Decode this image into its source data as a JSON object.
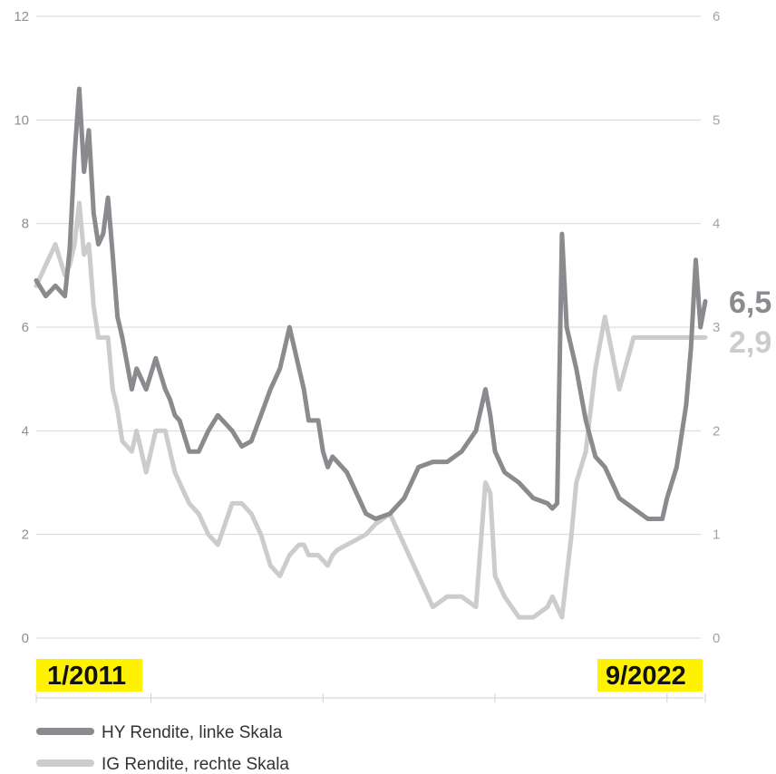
{
  "chart_data": {
    "type": "line",
    "title": "",
    "xlabel": "",
    "y_left": {
      "ylim": [
        0,
        12
      ],
      "ticks": [
        "0",
        "2",
        "4",
        "6",
        "8",
        "10",
        "12"
      ]
    },
    "y_right": {
      "ylim": [
        0,
        6
      ],
      "ticks": [
        "0",
        "1",
        "2",
        "3",
        "4",
        "5",
        "6"
      ]
    },
    "grid": true,
    "x_range": [
      "2011-01",
      "2022-09"
    ],
    "start_date_label": "1/2011",
    "end_date_label": "9/2022",
    "series": [
      {
        "name": "HY Rendite, linke Skala",
        "axis": "left",
        "color": "#8a8a8f",
        "end_label": "6,5",
        "x": [
          "2011-01",
          "2011-03",
          "2011-05",
          "2011-07",
          "2011-08",
          "2011-09",
          "2011-10",
          "2011-11",
          "2011-12",
          "2012-01",
          "2012-02",
          "2012-03",
          "2012-04",
          "2012-05",
          "2012-06",
          "2012-07",
          "2012-09",
          "2012-10",
          "2012-12",
          "2013-02",
          "2013-04",
          "2013-05",
          "2013-06",
          "2013-07",
          "2013-09",
          "2013-11",
          "2014-01",
          "2014-03",
          "2014-06",
          "2014-08",
          "2014-10",
          "2014-12",
          "2015-02",
          "2015-04",
          "2015-06",
          "2015-08",
          "2015-09",
          "2015-10",
          "2015-12",
          "2016-01",
          "2016-02",
          "2016-03",
          "2016-04",
          "2016-06",
          "2016-08",
          "2016-10",
          "2016-12",
          "2017-03",
          "2017-06",
          "2017-09",
          "2017-12",
          "2018-03",
          "2018-06",
          "2018-09",
          "2018-11",
          "2018-12",
          "2019-01",
          "2019-03",
          "2019-06",
          "2019-09",
          "2019-12",
          "2020-01",
          "2020-02",
          "2020-03",
          "2020-04",
          "2020-05",
          "2020-06",
          "2020-08",
          "2020-10",
          "2020-12",
          "2021-03",
          "2021-06",
          "2021-09",
          "2021-12",
          "2022-01",
          "2022-03",
          "2022-05",
          "2022-06",
          "2022-07",
          "2022-08",
          "2022-09"
        ],
        "values": [
          6.9,
          6.6,
          6.8,
          6.6,
          7.5,
          9.3,
          10.6,
          9.0,
          9.8,
          8.2,
          7.6,
          7.8,
          8.5,
          7.4,
          6.2,
          5.8,
          4.8,
          5.2,
          4.8,
          5.4,
          4.8,
          4.6,
          4.3,
          4.2,
          3.6,
          3.6,
          4.0,
          4.3,
          4.0,
          3.7,
          3.8,
          4.3,
          4.8,
          5.2,
          6.0,
          5.2,
          4.8,
          4.2,
          4.2,
          3.6,
          3.3,
          3.5,
          3.4,
          3.2,
          2.8,
          2.4,
          2.3,
          2.4,
          2.7,
          3.3,
          3.4,
          3.4,
          3.6,
          4.0,
          4.8,
          4.3,
          3.6,
          3.2,
          3.0,
          2.7,
          2.6,
          2.5,
          2.6,
          7.8,
          6.0,
          5.6,
          5.2,
          4.2,
          3.5,
          3.3,
          2.7,
          2.5,
          2.3,
          2.3,
          2.7,
          3.3,
          4.5,
          5.6,
          7.3,
          6.0,
          6.5
        ]
      },
      {
        "name": "IG Rendite, rechte Skala",
        "axis": "right",
        "color": "#cccccc",
        "end_label": "2,9",
        "x": [
          "2011-01",
          "2011-03",
          "2011-05",
          "2011-07",
          "2011-08",
          "2011-09",
          "2011-10",
          "2011-11",
          "2011-12",
          "2012-01",
          "2012-02",
          "2012-03",
          "2012-04",
          "2012-05",
          "2012-06",
          "2012-07",
          "2012-09",
          "2012-10",
          "2012-12",
          "2013-02",
          "2013-04",
          "2013-05",
          "2013-06",
          "2013-07",
          "2013-09",
          "2013-11",
          "2014-01",
          "2014-03",
          "2014-06",
          "2014-08",
          "2014-10",
          "2014-12",
          "2015-02",
          "2015-04",
          "2015-06",
          "2015-08",
          "2015-09",
          "2015-10",
          "2015-12",
          "2016-01",
          "2016-02",
          "2016-03",
          "2016-04",
          "2016-06",
          "2016-08",
          "2016-10",
          "2016-12",
          "2017-03",
          "2017-06",
          "2017-09",
          "2017-12",
          "2018-03",
          "2018-06",
          "2018-09",
          "2018-11",
          "2018-12",
          "2019-01",
          "2019-03",
          "2019-06",
          "2019-09",
          "2019-12",
          "2020-01",
          "2020-02",
          "2020-03",
          "2020-04",
          "2020-05",
          "2020-06",
          "2020-08",
          "2020-10",
          "2020-12",
          "2021-03",
          "2021-06",
          "2021-09",
          "2021-12",
          "2022-01",
          "2022-03",
          "2022-05",
          "2022-06",
          "2022-07",
          "2022-08",
          "2022-09"
        ],
        "values": [
          3.4,
          3.6,
          3.8,
          3.5,
          3.6,
          3.8,
          4.2,
          3.7,
          3.8,
          3.2,
          2.9,
          2.9,
          2.9,
          2.4,
          2.2,
          1.9,
          1.8,
          2.0,
          1.6,
          2.0,
          2.0,
          1.8,
          1.6,
          1.5,
          1.3,
          1.2,
          1.0,
          0.9,
          1.3,
          1.3,
          1.2,
          1.0,
          0.7,
          0.6,
          0.8,
          0.9,
          0.9,
          0.8,
          0.8,
          0.75,
          0.7,
          0.8,
          0.85,
          0.9,
          0.95,
          1.0,
          1.1,
          1.2,
          0.9,
          0.6,
          0.3,
          0.4,
          0.4,
          0.3,
          1.5,
          1.4,
          0.6,
          0.4,
          0.2,
          0.2,
          0.3,
          0.4,
          0.3,
          0.2,
          0.6,
          1.0,
          1.5,
          1.8,
          2.6,
          3.1,
          2.4,
          2.9,
          2.9,
          2.9,
          2.9,
          2.9,
          2.9,
          2.9,
          2.9,
          2.9,
          2.9
        ]
      }
    ]
  },
  "legend": [
    {
      "label": "HY Rendite, linke Skala",
      "color": "#8a8a8f"
    },
    {
      "label": "IG Rendite, rechte Skala",
      "color": "#cccccc"
    }
  ],
  "highlight_color": "#fff200"
}
